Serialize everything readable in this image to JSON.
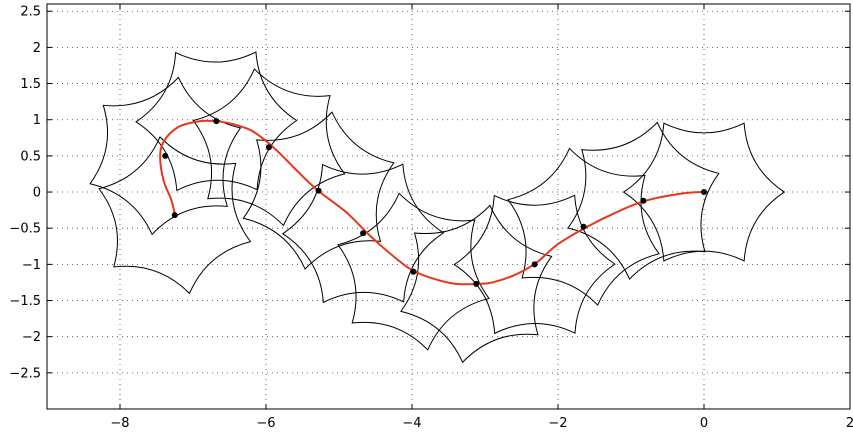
{
  "chart_data": {
    "type": "line",
    "title": "",
    "xlabel": "",
    "ylabel": "",
    "xlim": [
      -9,
      2
    ],
    "ylim": [
      -3,
      2.6
    ],
    "xticks": [
      -8,
      -6,
      -4,
      -2,
      0,
      2
    ],
    "xtick_labels": [
      "−8",
      "−6",
      "−4",
      "−2",
      "0",
      "2"
    ],
    "yticks": [
      2.5,
      2,
      1.5,
      1,
      0.5,
      0,
      -0.5,
      -1,
      -1.5,
      -2,
      -2.5
    ],
    "ytick_labels": [
      "2.5",
      "2",
      "1.5",
      "1",
      "0.5",
      "0",
      "−0.5",
      "−1",
      "−1.5",
      "−2",
      "−2.5"
    ],
    "grid": true,
    "colors": {
      "trajectory": "#e8361b",
      "shapes": "#000000",
      "markers": "#000000"
    },
    "series": [
      {
        "x": [
          0,
          -0.3,
          -0.8,
          -1.2,
          -1.6,
          -2.0,
          -2.3,
          -2.6,
          -2.9,
          -3.1,
          -3.4,
          -3.7,
          -4.0,
          -4.3,
          -4.6,
          -4.9,
          -5.3,
          -5.6,
          -5.9,
          -6.2,
          -6.5,
          -6.7,
          -6.9,
          -7.2,
          -7.4,
          -7.45,
          -7.4,
          -7.3,
          -7.25
        ],
        "y": [
          0,
          -0.02,
          -0.12,
          -0.28,
          -0.48,
          -0.72,
          -0.98,
          -1.15,
          -1.25,
          -1.27,
          -1.27,
          -1.2,
          -1.08,
          -0.85,
          -0.58,
          -0.28,
          0.03,
          0.32,
          0.62,
          0.85,
          0.95,
          0.98,
          0.98,
          0.9,
          0.7,
          0.48,
          0.15,
          -0.1,
          -0.3
        ]
      }
    ],
    "markers": {
      "x": [
        0,
        -0.83,
        -1.65,
        -2.32,
        -3.12,
        -3.98,
        -4.67,
        -5.28,
        -5.96,
        -6.68,
        -7.38,
        -7.25
      ],
      "y": [
        0,
        -0.12,
        -0.48,
        -1.0,
        -1.27,
        -1.1,
        -0.57,
        0.02,
        0.62,
        0.98,
        0.5,
        -0.32
      ]
    },
    "shapes": {
      "kind": "six-cusped star outline at each marker",
      "x": [
        0,
        -0.83,
        -1.65,
        -2.32,
        -3.12,
        -3.98,
        -4.67,
        -5.28,
        -5.96,
        -6.68,
        -7.38,
        -7.25
      ],
      "y": [
        0,
        -0.12,
        -0.48,
        -1.0,
        -1.27,
        -1.1,
        -0.57,
        0.02,
        0.62,
        0.98,
        0.5,
        -0.32
      ],
      "radius": 1.1
    }
  }
}
